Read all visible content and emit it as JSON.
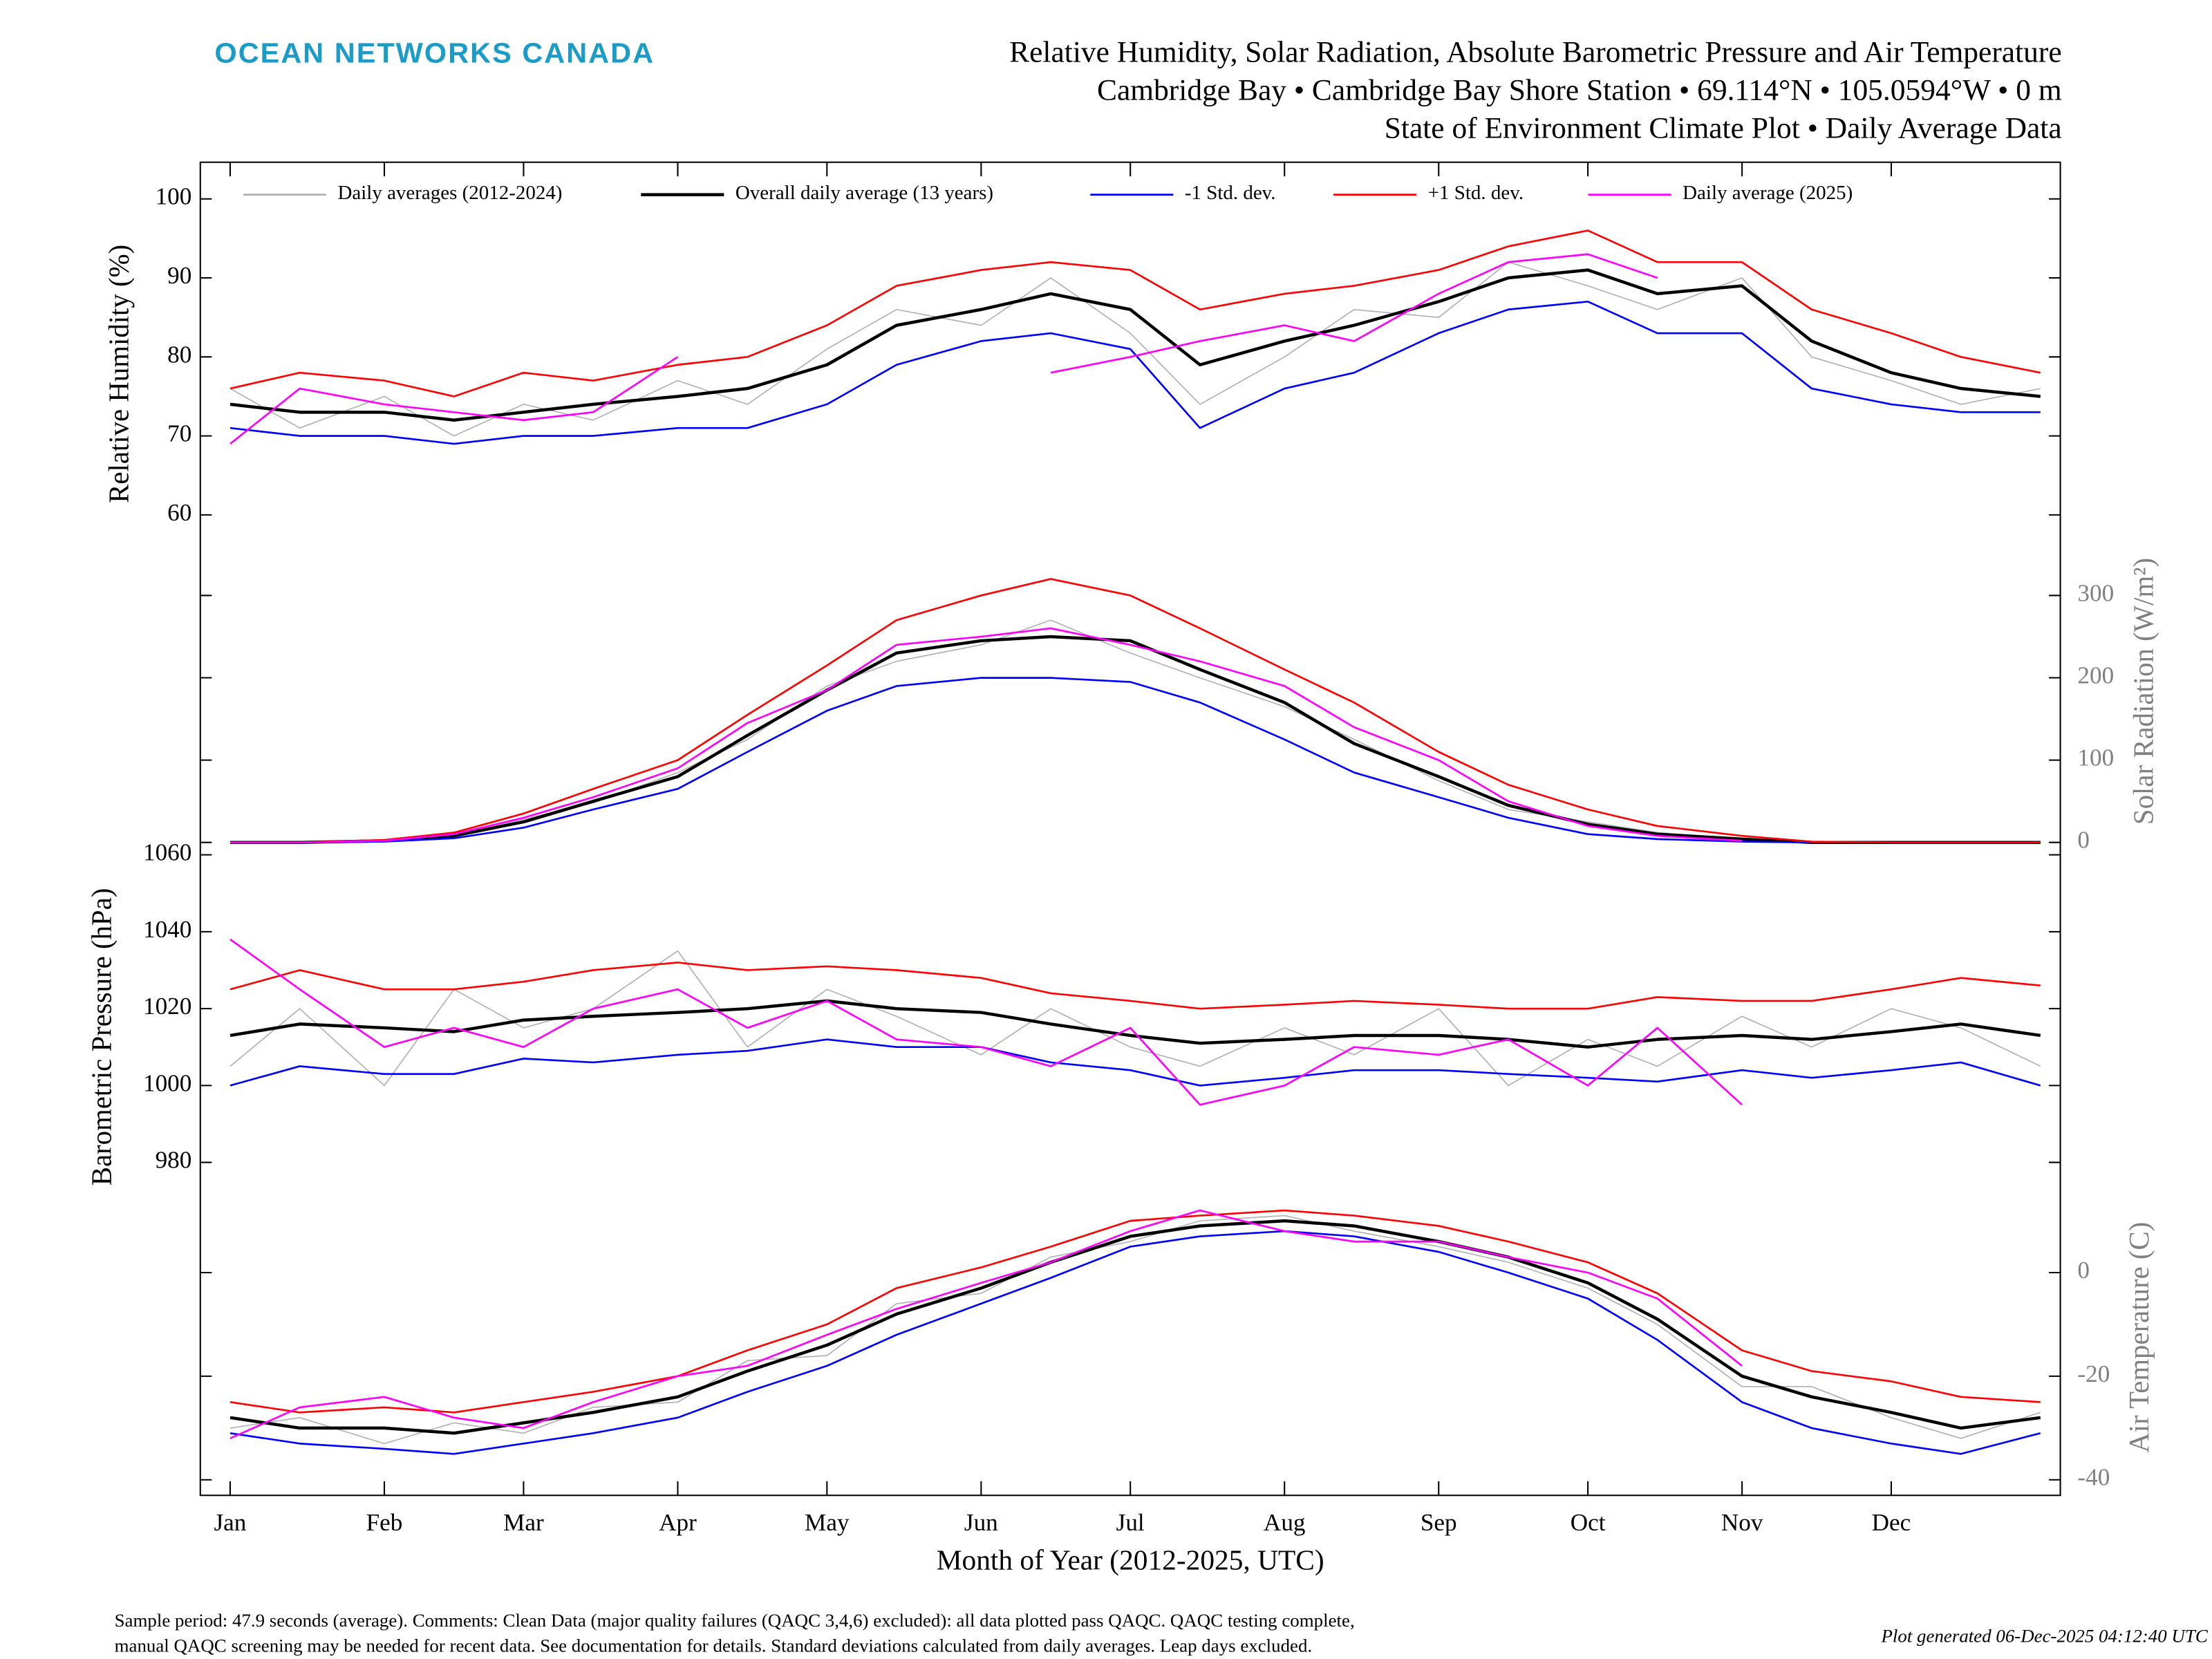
{
  "header": {
    "logo": "OCEAN NETWORKS CANADA",
    "title_lines": [
      "Relative Humidity, Solar Radiation, Absolute Barometric Pressure and Air Temperature",
      "Cambridge Bay • Cambridge Bay Shore Station • 69.114°N • 105.0594°W • 0 m",
      "State of Environment Climate Plot • Daily Average Data"
    ]
  },
  "footer": {
    "lines": [
      "Sample period: 47.9 seconds (average). Comments: Clean Data (major quality failures (QAQC 3,4,6) excluded): all data plotted pass QAQC. QAQC testing complete,",
      "manual QAQC screening may be needed for recent data. See documentation for details. Standard deviations calculated from daily averages. Leap days excluded."
    ],
    "generated": "Plot generated 06-Dec-2025 04:12:40 UTC"
  },
  "chart_data": [
    {
      "type": "line",
      "ylabel": "Relative Humidity (%)",
      "axis_side": "left",
      "ylim": [
        55,
        105
      ],
      "yticks": [
        60,
        70,
        80,
        90,
        100
      ],
      "xlim": [
        -5,
        369
      ],
      "x": [
        1,
        15,
        32,
        46,
        60,
        74,
        91,
        105,
        121,
        135,
        152,
        166,
        182,
        196,
        213,
        227,
        244,
        258,
        274,
        288,
        305,
        319,
        335,
        349,
        365
      ],
      "series": [
        {
          "name": "Daily averages (2012-2024)",
          "color": "#b0b0b0",
          "values": [
            76,
            71,
            75,
            70,
            74,
            72,
            77,
            74,
            81,
            86,
            84,
            90,
            83,
            74,
            80,
            86,
            85,
            92,
            89,
            86,
            90,
            80,
            77,
            74,
            76
          ]
        },
        {
          "name": "Overall daily average (13 years)",
          "color": "#000000",
          "values": [
            74,
            73,
            73,
            72,
            73,
            74,
            75,
            76,
            79,
            84,
            86,
            88,
            86,
            79,
            82,
            84,
            87,
            90,
            91,
            88,
            89,
            82,
            78,
            76,
            75
          ]
        },
        {
          "name": "-1 Std. dev.",
          "color": "#0000ff",
          "values": [
            71,
            70,
            70,
            69,
            70,
            70,
            71,
            71,
            74,
            79,
            82,
            83,
            81,
            71,
            76,
            78,
            83,
            86,
            87,
            83,
            83,
            76,
            74,
            73,
            73
          ]
        },
        {
          "name": "+1 Std. dev.",
          "color": "#ff0000",
          "values": [
            76,
            78,
            77,
            75,
            78,
            77,
            79,
            80,
            84,
            89,
            91,
            92,
            91,
            86,
            88,
            89,
            91,
            94,
            96,
            92,
            92,
            86,
            83,
            80,
            78
          ]
        },
        {
          "name": "Daily average (2025)",
          "color": "#ff00ff",
          "values": [
            69,
            76,
            74,
            73,
            72,
            73,
            80,
            null,
            null,
            null,
            null,
            78,
            80,
            82,
            84,
            82,
            88,
            92,
            93,
            90,
            null,
            null,
            null,
            null,
            null
          ]
        }
      ]
    },
    {
      "type": "line",
      "ylabel": "Solar Radiation (W/m²)",
      "axis_side": "right",
      "ylim": [
        -10,
        355
      ],
      "yticks": [
        0,
        100,
        200,
        300
      ],
      "xlim": [
        -5,
        369
      ],
      "x": [
        1,
        15,
        32,
        46,
        60,
        74,
        91,
        105,
        121,
        135,
        152,
        166,
        182,
        196,
        213,
        227,
        244,
        258,
        274,
        288,
        305,
        319,
        335,
        349,
        365
      ],
      "series": [
        {
          "color": "#b0b0b0",
          "values": [
            0,
            0,
            2,
            9,
            28,
            48,
            85,
            125,
            190,
            220,
            240,
            270,
            230,
            200,
            165,
            125,
            75,
            40,
            25,
            12,
            4,
            0,
            0,
            0,
            0
          ]
        },
        {
          "color": "#000000",
          "values": [
            0,
            0,
            2,
            8,
            25,
            50,
            80,
            130,
            185,
            230,
            245,
            250,
            245,
            210,
            170,
            120,
            80,
            45,
            22,
            10,
            4,
            0,
            0,
            0,
            0
          ]
        },
        {
          "color": "#0000ff",
          "values": [
            0,
            0,
            1,
            5,
            18,
            40,
            65,
            110,
            160,
            190,
            200,
            200,
            195,
            170,
            125,
            85,
            55,
            30,
            10,
            4,
            1,
            0,
            0,
            0,
            0
          ]
        },
        {
          "color": "#ff0000",
          "values": [
            0,
            0,
            3,
            12,
            35,
            65,
            100,
            155,
            215,
            270,
            300,
            320,
            300,
            260,
            210,
            170,
            110,
            70,
            40,
            20,
            8,
            1,
            0,
            0,
            0
          ]
        },
        {
          "color": "#ff00ff",
          "values": [
            0,
            0,
            2,
            10,
            30,
            55,
            90,
            145,
            185,
            240,
            250,
            260,
            240,
            220,
            190,
            140,
            100,
            50,
            20,
            8,
            2,
            null,
            null,
            null,
            null
          ]
        }
      ]
    },
    {
      "type": "line",
      "ylabel": "Barometric Pressure (hPa)",
      "axis_side": "left",
      "ylim": [
        975,
        1062
      ],
      "yticks": [
        980,
        1000,
        1020,
        1040,
        1060
      ],
      "xlim": [
        -5,
        369
      ],
      "x": [
        1,
        15,
        32,
        46,
        60,
        74,
        91,
        105,
        121,
        135,
        152,
        166,
        182,
        196,
        213,
        227,
        244,
        258,
        274,
        288,
        305,
        319,
        335,
        349,
        365
      ],
      "series": [
        {
          "color": "#b0b0b0",
          "values": [
            1005,
            1020,
            1000,
            1025,
            1015,
            1020,
            1035,
            1010,
            1025,
            1018,
            1008,
            1020,
            1010,
            1005,
            1015,
            1008,
            1020,
            1000,
            1012,
            1005,
            1018,
            1010,
            1020,
            1015,
            1005
          ]
        },
        {
          "color": "#000000",
          "values": [
            1013,
            1016,
            1015,
            1014,
            1017,
            1018,
            1019,
            1020,
            1022,
            1020,
            1019,
            1016,
            1013,
            1011,
            1012,
            1013,
            1013,
            1012,
            1010,
            1012,
            1013,
            1012,
            1014,
            1016,
            1013
          ]
        },
        {
          "color": "#0000ff",
          "values": [
            1000,
            1005,
            1003,
            1003,
            1007,
            1006,
            1008,
            1009,
            1012,
            1010,
            1010,
            1006,
            1004,
            1000,
            1002,
            1004,
            1004,
            1003,
            1002,
            1001,
            1004,
            1002,
            1004,
            1006,
            1000
          ]
        },
        {
          "color": "#ff0000",
          "values": [
            1025,
            1030,
            1025,
            1025,
            1027,
            1030,
            1032,
            1030,
            1031,
            1030,
            1028,
            1024,
            1022,
            1020,
            1021,
            1022,
            1021,
            1020,
            1020,
            1023,
            1022,
            1022,
            1025,
            1028,
            1026
          ]
        },
        {
          "color": "#ff00ff",
          "values": [
            1038,
            1025,
            1010,
            1015,
            1010,
            1020,
            1025,
            1015,
            1022,
            1012,
            1010,
            1005,
            1015,
            995,
            1000,
            1010,
            1008,
            1012,
            1000,
            1015,
            995,
            null,
            null,
            null,
            null
          ]
        }
      ]
    },
    {
      "type": "line",
      "ylabel": "Air Temperature (C)",
      "axis_side": "right",
      "ylim": [
        -43,
        18
      ],
      "yticks": [
        -40,
        -20,
        0
      ],
      "xlim": [
        -5,
        369
      ],
      "xlabel": "Month of Year (2012-2025, UTC)",
      "xticks": [
        {
          "value": 1,
          "label": "Jan"
        },
        {
          "value": 32,
          "label": "Feb"
        },
        {
          "value": 60,
          "label": "Mar"
        },
        {
          "value": 91,
          "label": "Apr"
        },
        {
          "value": 121,
          "label": "May"
        },
        {
          "value": 152,
          "label": "Jun"
        },
        {
          "value": 182,
          "label": "Jul"
        },
        {
          "value": 213,
          "label": "Aug"
        },
        {
          "value": 244,
          "label": "Sep"
        },
        {
          "value": 274,
          "label": "Oct"
        },
        {
          "value": 305,
          "label": "Nov"
        },
        {
          "value": 335,
          "label": "Dec"
        }
      ],
      "x": [
        1,
        15,
        32,
        46,
        60,
        74,
        91,
        105,
        121,
        135,
        152,
        166,
        182,
        196,
        213,
        227,
        244,
        258,
        274,
        288,
        305,
        319,
        335,
        349,
        365
      ],
      "series": [
        {
          "color": "#b0b0b0",
          "values": [
            -30,
            -28,
            -33,
            -29,
            -31,
            -26,
            -25,
            -17,
            -16,
            -6,
            -4,
            3,
            6,
            10,
            11,
            8,
            5,
            2,
            -3,
            -10,
            -22,
            -22,
            -28,
            -32,
            -27
          ]
        },
        {
          "color": "#000000",
          "values": [
            -28,
            -30,
            -30,
            -31,
            -29,
            -27,
            -24,
            -19,
            -14,
            -8,
            -3,
            2,
            7,
            9,
            10,
            9,
            6,
            3,
            -2,
            -9,
            -20,
            -24,
            -27,
            -30,
            -28
          ]
        },
        {
          "color": "#0000ff",
          "values": [
            -31,
            -33,
            -34,
            -35,
            -33,
            -31,
            -28,
            -23,
            -18,
            -12,
            -6,
            -1,
            5,
            7,
            8,
            7,
            4,
            0,
            -5,
            -13,
            -25,
            -30,
            -33,
            -35,
            -31
          ]
        },
        {
          "color": "#ff0000",
          "values": [
            -25,
            -27,
            -26,
            -27,
            -25,
            -23,
            -20,
            -15,
            -10,
            -3,
            1,
            5,
            10,
            11,
            12,
            11,
            9,
            6,
            2,
            -4,
            -15,
            -19,
            -21,
            -24,
            -25
          ]
        },
        {
          "color": "#ff00ff",
          "values": [
            -32,
            -26,
            -24,
            -28,
            -30,
            -25,
            -20,
            -18,
            -12,
            -7,
            -2,
            2,
            8,
            12,
            8,
            6,
            6,
            3,
            0,
            -5,
            -18,
            null,
            null,
            null,
            null
          ]
        }
      ]
    }
  ]
}
